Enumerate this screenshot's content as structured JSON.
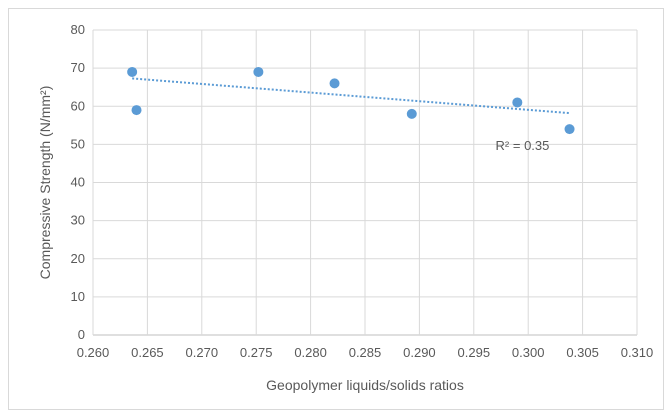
{
  "chart_data": {
    "type": "scatter",
    "title": "",
    "xlabel": "Geopolymer liquids/solids ratios",
    "ylabel": "Compressive Strength (N/mm²)",
    "xlim": [
      0.26,
      0.31
    ],
    "ylim": [
      0,
      80
    ],
    "xticks": [
      "0.260",
      "0.265",
      "0.270",
      "0.275",
      "0.280",
      "0.285",
      "0.290",
      "0.295",
      "0.300",
      "0.305",
      "0.310"
    ],
    "yticks": [
      "0",
      "10",
      "20",
      "30",
      "40",
      "50",
      "60",
      "70",
      "80"
    ],
    "grid": true,
    "series": [
      {
        "x": [
          0.2636,
          0.264,
          0.2752,
          0.2822,
          0.2893,
          0.299,
          0.3038
        ],
        "y": [
          69,
          59,
          69,
          66,
          58,
          61,
          54
        ]
      }
    ],
    "trendline": {
      "type": "linear",
      "x": [
        0.2636,
        0.3038
      ],
      "y": [
        67.3,
        58.2
      ],
      "label": "R² = 0.35"
    },
    "colors": {
      "marker": "#5b9bd5",
      "trendline": "#5b9bd5",
      "grid": "#d9d9d9",
      "text": "#595959"
    }
  }
}
